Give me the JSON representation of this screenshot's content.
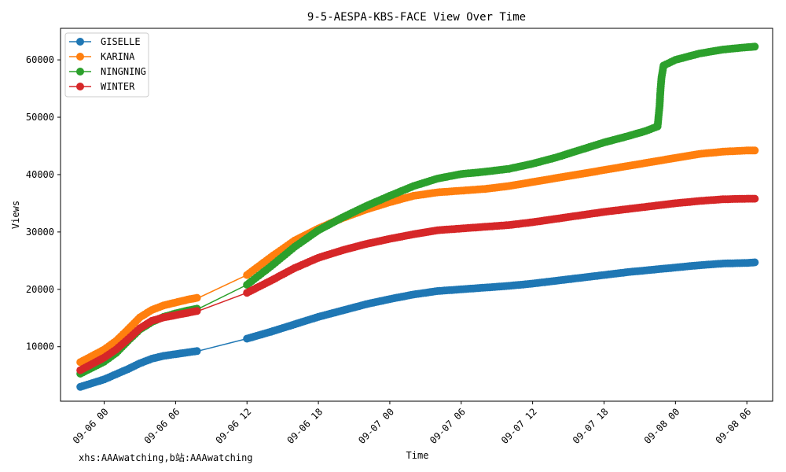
{
  "chart_data": {
    "type": "line",
    "title": "9-5-AESPA-KBS-FACE View Over Time",
    "xlabel": "Time",
    "ylabel": "Views",
    "x_ticks": [
      "09-06 00",
      "09-06 06",
      "09-06 12",
      "09-06 18",
      "09-07 00",
      "09-07 06",
      "09-07 12",
      "09-07 18",
      "09-08 00",
      "09-08 06"
    ],
    "y_ticks": [
      10000,
      20000,
      30000,
      40000,
      50000,
      60000
    ],
    "xlim": [
      "09-05 20:20",
      "09-08 08:10"
    ],
    "ylim": [
      500,
      65500
    ],
    "legend_position": "top-left",
    "grid": false,
    "series": [
      {
        "name": "GISELLE",
        "color": "#1f77b4",
        "points": [
          [
            "09-05 22:00",
            3000
          ],
          [
            "09-06 00:00",
            4300
          ],
          [
            "09-06 01:00",
            5200
          ],
          [
            "09-06 02:00",
            6100
          ],
          [
            "09-06 03:00",
            7100
          ],
          [
            "09-06 04:00",
            7900
          ],
          [
            "09-06 05:00",
            8400
          ],
          [
            "09-06 06:00",
            8700
          ],
          [
            "09-06 07:00",
            9000
          ],
          [
            "09-06 08:00",
            9300
          ],
          [
            "09-06 12:00",
            11400
          ],
          [
            "09-06 14:00",
            12600
          ],
          [
            "09-06 16:00",
            13900
          ],
          [
            "09-06 18:00",
            15200
          ],
          [
            "09-06 20:00",
            16300
          ],
          [
            "09-06 22:00",
            17400
          ],
          [
            "09-07 00:00",
            18300
          ],
          [
            "09-07 02:00",
            19100
          ],
          [
            "09-07 04:00",
            19700
          ],
          [
            "09-07 06:00",
            20000
          ],
          [
            "09-07 08:00",
            20300
          ],
          [
            "09-07 10:00",
            20600
          ],
          [
            "09-07 12:00",
            21000
          ],
          [
            "09-07 14:00",
            21500
          ],
          [
            "09-07 16:00",
            22000
          ],
          [
            "09-07 18:00",
            22500
          ],
          [
            "09-07 20:00",
            23000
          ],
          [
            "09-07 22:00",
            23400
          ],
          [
            "09-08 00:00",
            23800
          ],
          [
            "09-08 02:00",
            24200
          ],
          [
            "09-08 04:00",
            24500
          ],
          [
            "09-08 06:00",
            24600
          ],
          [
            "09-08 06:40",
            24700
          ]
        ]
      },
      {
        "name": "KARINA",
        "color": "#ff7f0e",
        "points": [
          [
            "09-05 22:00",
            7300
          ],
          [
            "09-06 00:00",
            9500
          ],
          [
            "09-06 01:00",
            11000
          ],
          [
            "09-06 02:00",
            13000
          ],
          [
            "09-06 03:00",
            15100
          ],
          [
            "09-06 04:00",
            16400
          ],
          [
            "09-06 05:00",
            17200
          ],
          [
            "09-06 06:00",
            17700
          ],
          [
            "09-06 07:00",
            18200
          ],
          [
            "09-06 08:00",
            18600
          ],
          [
            "09-06 12:00",
            22500
          ],
          [
            "09-06 14:00",
            25600
          ],
          [
            "09-06 16:00",
            28500
          ],
          [
            "09-06 18:00",
            30600
          ],
          [
            "09-06 20:00",
            32400
          ],
          [
            "09-06 22:00",
            33900
          ],
          [
            "09-07 00:00",
            35200
          ],
          [
            "09-07 02:00",
            36300
          ],
          [
            "09-07 04:00",
            36900
          ],
          [
            "09-07 06:00",
            37200
          ],
          [
            "09-07 08:00",
            37500
          ],
          [
            "09-07 10:00",
            38000
          ],
          [
            "09-07 12:00",
            38700
          ],
          [
            "09-07 14:00",
            39400
          ],
          [
            "09-07 16:00",
            40100
          ],
          [
            "09-07 18:00",
            40800
          ],
          [
            "09-07 20:00",
            41500
          ],
          [
            "09-07 22:00",
            42200
          ],
          [
            "09-08 00:00",
            42900
          ],
          [
            "09-08 02:00",
            43600
          ],
          [
            "09-08 04:00",
            44000
          ],
          [
            "09-08 06:00",
            44200
          ],
          [
            "09-08 06:40",
            44200
          ]
        ]
      },
      {
        "name": "NINGNING",
        "color": "#2ca02c",
        "points": [
          [
            "09-05 22:00",
            5300
          ],
          [
            "09-06 00:00",
            7400
          ],
          [
            "09-06 01:00",
            8900
          ],
          [
            "09-06 02:00",
            11000
          ],
          [
            "09-06 03:00",
            13000
          ],
          [
            "09-06 04:00",
            14300
          ],
          [
            "09-06 05:00",
            15200
          ],
          [
            "09-06 06:00",
            15800
          ],
          [
            "09-06 07:00",
            16300
          ],
          [
            "09-06 08:00",
            16700
          ],
          [
            "09-06 12:00",
            20800
          ],
          [
            "09-06 14:00",
            24000
          ],
          [
            "09-06 16:00",
            27400
          ],
          [
            "09-06 18:00",
            30300
          ],
          [
            "09-06 20:00",
            32500
          ],
          [
            "09-06 22:00",
            34500
          ],
          [
            "09-07 00:00",
            36300
          ],
          [
            "09-07 02:00",
            38000
          ],
          [
            "09-07 04:00",
            39300
          ],
          [
            "09-07 06:00",
            40100
          ],
          [
            "09-07 08:00",
            40500
          ],
          [
            "09-07 10:00",
            41000
          ],
          [
            "09-07 12:00",
            41900
          ],
          [
            "09-07 14:00",
            43000
          ],
          [
            "09-07 16:00",
            44300
          ],
          [
            "09-07 18:00",
            45600
          ],
          [
            "09-07 20:00",
            46700
          ],
          [
            "09-07 21:30",
            47600
          ],
          [
            "09-07 22:30",
            48400
          ],
          [
            "09-07 22:40",
            52000
          ],
          [
            "09-07 22:45",
            55000
          ],
          [
            "09-07 22:50",
            57000
          ],
          [
            "09-07 23:00",
            59000
          ],
          [
            "09-08 00:00",
            60000
          ],
          [
            "09-08 02:00",
            61100
          ],
          [
            "09-08 04:00",
            61800
          ],
          [
            "09-08 06:00",
            62200
          ],
          [
            "09-08 06:40",
            62300
          ]
        ]
      },
      {
        "name": "WINTER",
        "color": "#d62728",
        "points": [
          [
            "09-05 22:00",
            5900
          ],
          [
            "09-06 00:00",
            8100
          ],
          [
            "09-06 01:00",
            9500
          ],
          [
            "09-06 02:00",
            11300
          ],
          [
            "09-06 03:00",
            13200
          ],
          [
            "09-06 04:00",
            14500
          ],
          [
            "09-06 05:00",
            15100
          ],
          [
            "09-06 06:00",
            15500
          ],
          [
            "09-06 07:00",
            15900
          ],
          [
            "09-06 08:00",
            16300
          ],
          [
            "09-06 12:00",
            19400
          ],
          [
            "09-06 14:00",
            21500
          ],
          [
            "09-06 16:00",
            23700
          ],
          [
            "09-06 18:00",
            25500
          ],
          [
            "09-06 20:00",
            26800
          ],
          [
            "09-06 22:00",
            27900
          ],
          [
            "09-07 00:00",
            28800
          ],
          [
            "09-07 02:00",
            29600
          ],
          [
            "09-07 04:00",
            30300
          ],
          [
            "09-07 06:00",
            30600
          ],
          [
            "09-07 08:00",
            30900
          ],
          [
            "09-07 10:00",
            31200
          ],
          [
            "09-07 12:00",
            31700
          ],
          [
            "09-07 14:00",
            32300
          ],
          [
            "09-07 16:00",
            32900
          ],
          [
            "09-07 18:00",
            33500
          ],
          [
            "09-07 20:00",
            34000
          ],
          [
            "09-07 22:00",
            34500
          ],
          [
            "09-08 00:00",
            35000
          ],
          [
            "09-08 02:00",
            35400
          ],
          [
            "09-08 04:00",
            35700
          ],
          [
            "09-08 06:00",
            35800
          ],
          [
            "09-08 06:40",
            35800
          ]
        ]
      }
    ]
  },
  "watermark": "xhs:AAAwatching,b站:AAAwatching"
}
